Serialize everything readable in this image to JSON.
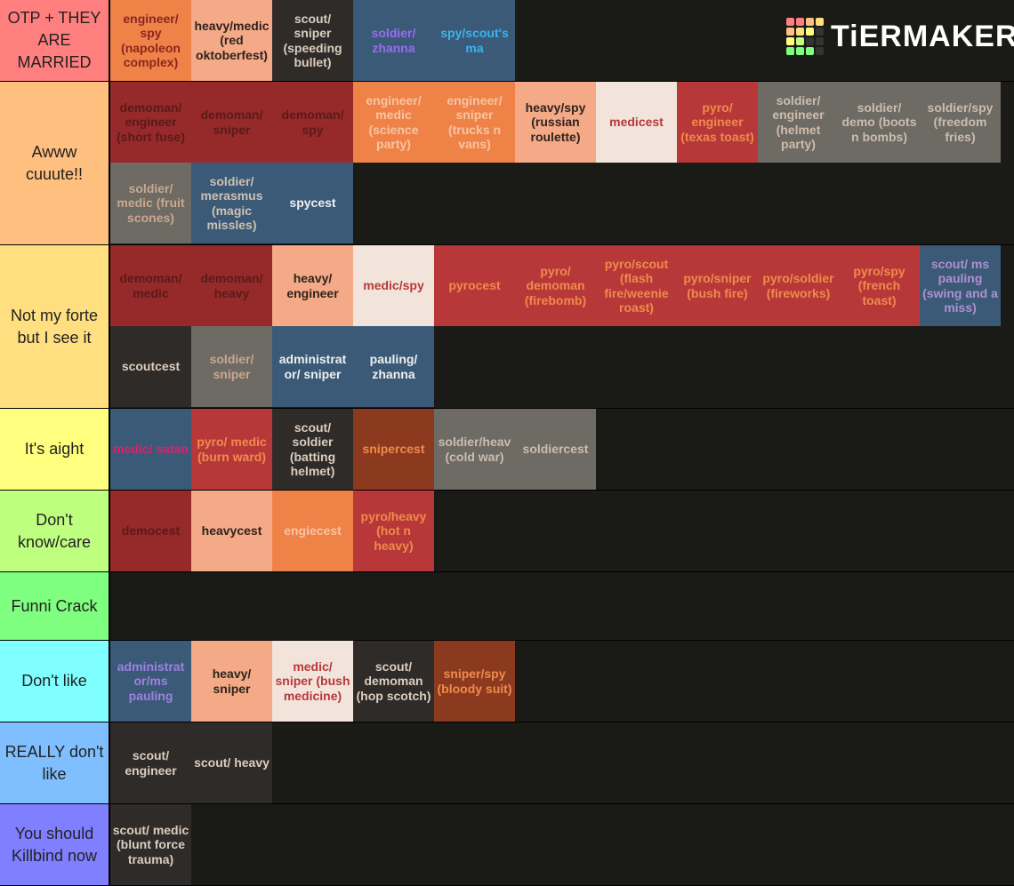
{
  "logo": "TiERMAKER",
  "tiers": [
    {
      "label": "OTP + THEY ARE MARRIED",
      "color": "#ff7f7f",
      "items": [
        {
          "text": "engineer/ spy (napoleon complex)",
          "bg": "#ef8347",
          "fg": "#8b2520"
        },
        {
          "text": "heavy/medic (red oktoberfest)",
          "bg": "#f4a987",
          "fg": "#2e231e"
        },
        {
          "text": "scout/ sniper (speeding bullet)",
          "bg": "#2f2b29",
          "fg": "#dccdbe"
        },
        {
          "text": "soldier/ zhanna",
          "bg": "#3a5a78",
          "fg": "#9a6cf0"
        },
        {
          "text": "spy/scout's ma",
          "bg": "#3a5a78",
          "fg": "#3cb4ee"
        }
      ]
    },
    {
      "label": "Awww cuuute!!",
      "color": "#ffbf7f",
      "items": [
        {
          "text": "demoman/ engineer (short fuse)",
          "bg": "#962a2b",
          "fg": "#5a1a18"
        },
        {
          "text": "demoman/ sniper",
          "bg": "#962a2b",
          "fg": "#5a1a18"
        },
        {
          "text": "demoman/ spy",
          "bg": "#962a2b",
          "fg": "#5a1a18"
        },
        {
          "text": "engineer/ medic (science party)",
          "bg": "#ef8347",
          "fg": "#f7c4a4"
        },
        {
          "text": "engineer/ sniper (trucks n vans)",
          "bg": "#ef8347",
          "fg": "#f7c4a4"
        },
        {
          "text": "heavy/spy (russian roulette)",
          "bg": "#f4a987",
          "fg": "#2e231e"
        },
        {
          "text": "medicest",
          "bg": "#f2e4da",
          "fg": "#b8383a"
        },
        {
          "text": "pyro/ engineer (texas toast)",
          "bg": "#b8383a",
          "fg": "#f08a4a"
        },
        {
          "text": "soldier/ engineer (helmet party)",
          "bg": "#6e6a64",
          "fg": "#cdbdad"
        },
        {
          "text": "soldier/ demo (boots n bombs)",
          "bg": "#6e6a64",
          "fg": "#cdbdad"
        },
        {
          "text": "soldier/spy (freedom fries)",
          "bg": "#6e6a64",
          "fg": "#cdbdad"
        },
        {
          "text": "soldier/ medic (fruit scones)",
          "bg": "#6e6a64",
          "fg": "#c8a890"
        },
        {
          "text": "soldier/ merasmus (magic missles)",
          "bg": "#3a5a78",
          "fg": "#d0c0b0"
        },
        {
          "text": "spycest",
          "bg": "#3a5a78",
          "fg": "#f0f0f0"
        }
      ]
    },
    {
      "label": "Not my forte but I see it",
      "color": "#ffdf7f",
      "items": [
        {
          "text": "demoman/ medic",
          "bg": "#962a2b",
          "fg": "#5a1a18"
        },
        {
          "text": "demoman/ heavy",
          "bg": "#962a2b",
          "fg": "#5a1a18"
        },
        {
          "text": "heavy/ engineer",
          "bg": "#f4a987",
          "fg": "#2e231e"
        },
        {
          "text": "medic/spy",
          "bg": "#f2e4da",
          "fg": "#b8383a"
        },
        {
          "text": "pyrocest",
          "bg": "#b8383a",
          "fg": "#f08a4a"
        },
        {
          "text": "pyro/ demoman (firebomb)",
          "bg": "#b8383a",
          "fg": "#f08a4a"
        },
        {
          "text": "pyro/scout (flash fire/weenie roast)",
          "bg": "#b8383a",
          "fg": "#f08a4a"
        },
        {
          "text": "pyro/sniper (bush fire)",
          "bg": "#b8383a",
          "fg": "#f08a4a"
        },
        {
          "text": "pyro/soldier (fireworks)",
          "bg": "#b8383a",
          "fg": "#f08a4a"
        },
        {
          "text": "pyro/spy (french toast)",
          "bg": "#b8383a",
          "fg": "#f08a4a"
        },
        {
          "text": "scout/ ms pauling (swing and a miss)",
          "bg": "#3a5a78",
          "fg": "#b090d0"
        },
        {
          "text": "scoutcest",
          "bg": "#2f2b29",
          "fg": "#dccdbe"
        },
        {
          "text": "soldier/ sniper",
          "bg": "#6e6a64",
          "fg": "#c8a890"
        },
        {
          "text": "administrat or/ sniper",
          "bg": "#3a5a78",
          "fg": "#f0f0f0"
        },
        {
          "text": "pauling/ zhanna",
          "bg": "#3a5a78",
          "fg": "#f0f0f0"
        }
      ]
    },
    {
      "label": "It's aight",
      "color": "#ffff7f",
      "items": [
        {
          "text": "medic/ satan",
          "bg": "#3a5a78",
          "fg": "#e0206a"
        },
        {
          "text": "pyro/ medic (burn ward)",
          "bg": "#b8383a",
          "fg": "#f08a4a"
        },
        {
          "text": "scout/ soldier (batting helmet)",
          "bg": "#2f2b29",
          "fg": "#dccdbe"
        },
        {
          "text": "snipercest",
          "bg": "#8b3a1f",
          "fg": "#f08a4a"
        },
        {
          "text": "soldier/heav (cold war)",
          "bg": "#6e6a64",
          "fg": "#cdbdad"
        },
        {
          "text": "soldiercest",
          "bg": "#6e6a64",
          "fg": "#cdbdad"
        }
      ]
    },
    {
      "label": "Don't know/care",
      "color": "#bfff7f",
      "items": [
        {
          "text": "democest",
          "bg": "#962a2b",
          "fg": "#5a1a18"
        },
        {
          "text": "heavycest",
          "bg": "#f4a987",
          "fg": "#2e231e"
        },
        {
          "text": "engiecest",
          "bg": "#ef8347",
          "fg": "#f7c4a4"
        },
        {
          "text": "pyro/heavy (hot n heavy)",
          "bg": "#b8383a",
          "fg": "#f08a4a"
        }
      ]
    },
    {
      "label": "Funni Crack",
      "color": "#7fff7f",
      "items": []
    },
    {
      "label": "Don't like",
      "color": "#7fffff",
      "items": [
        {
          "text": "administrat or/ms pauling",
          "bg": "#3a5a78",
          "fg": "#a080e0"
        },
        {
          "text": "heavy/ sniper",
          "bg": "#f4a987",
          "fg": "#2e231e"
        },
        {
          "text": "medic/ sniper (bush medicine)",
          "bg": "#f2e4da",
          "fg": "#b8383a"
        },
        {
          "text": "scout/ demoman (hop scotch)",
          "bg": "#2f2b29",
          "fg": "#dccdbe"
        },
        {
          "text": "sniper/spy (bloody suit)",
          "bg": "#8b3a1f",
          "fg": "#f08a4a"
        }
      ]
    },
    {
      "label": "REALLY don't like",
      "color": "#7fbfff",
      "items": [
        {
          "text": "scout/ engineer",
          "bg": "#2f2b29",
          "fg": "#dccdbe"
        },
        {
          "text": "scout/ heavy",
          "bg": "#2f2b29",
          "fg": "#dccdbe"
        }
      ]
    },
    {
      "label": "You should Killbind now",
      "color": "#7f7fff",
      "items": [
        {
          "text": "scout/ medic (blunt force trauma)",
          "bg": "#2f2b29",
          "fg": "#dccdbe"
        }
      ]
    }
  ]
}
